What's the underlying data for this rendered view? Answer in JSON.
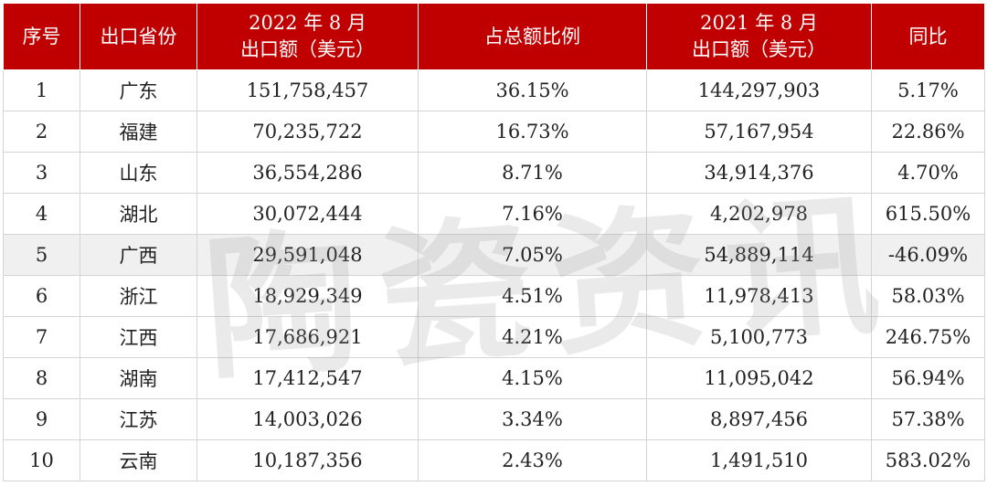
{
  "colors": {
    "header_bg": "#c00000",
    "row_highlight": "#f0f0f0",
    "grid": "#d4d4d4"
  },
  "header": {
    "rank": "序号",
    "province": "出口省份",
    "exp2022_line1": "2022 年 8 月",
    "exp2022_line2": "出口额（美元）",
    "share": "占总额比例",
    "exp2021_line1": "2021 年 8 月",
    "exp2021_line2": "出口额（美元）",
    "yoy": "同比"
  },
  "rows": [
    {
      "rank": "1",
      "province": "广东",
      "exp2022": "151,758,457",
      "share": "36.15%",
      "exp2021": "144,297,903",
      "yoy": "5.17%"
    },
    {
      "rank": "2",
      "province": "福建",
      "exp2022": "70,235,722",
      "share": "16.73%",
      "exp2021": "57,167,954",
      "yoy": "22.86%"
    },
    {
      "rank": "3",
      "province": "山东",
      "exp2022": "36,554,286",
      "share": "8.71%",
      "exp2021": "34,914,376",
      "yoy": "4.70%"
    },
    {
      "rank": "4",
      "province": "湖北",
      "exp2022": "30,072,444",
      "share": "7.16%",
      "exp2021": "4,202,978",
      "yoy": "615.50%"
    },
    {
      "rank": "5",
      "province": "广西",
      "exp2022": "29,591,048",
      "share": "7.05%",
      "exp2021": "54,889,114",
      "yoy": "-46.09%"
    },
    {
      "rank": "6",
      "province": "浙江",
      "exp2022": "18,929,349",
      "share": "4.51%",
      "exp2021": "11,978,413",
      "yoy": "58.03%"
    },
    {
      "rank": "7",
      "province": "江西",
      "exp2022": "17,686,921",
      "share": "4.21%",
      "exp2021": "5,100,773",
      "yoy": "246.75%"
    },
    {
      "rank": "8",
      "province": "湖南",
      "exp2022": "17,412,547",
      "share": "4.15%",
      "exp2021": "11,095,042",
      "yoy": "56.94%"
    },
    {
      "rank": "9",
      "province": "江苏",
      "exp2022": "14,003,026",
      "share": "3.34%",
      "exp2021": "8,897,456",
      "yoy": "57.38%"
    },
    {
      "rank": "10",
      "province": "云南",
      "exp2022": "10,187,356",
      "share": "2.43%",
      "exp2021": "1,491,510",
      "yoy": "583.02%"
    }
  ],
  "watermark": "陶瓷资讯"
}
